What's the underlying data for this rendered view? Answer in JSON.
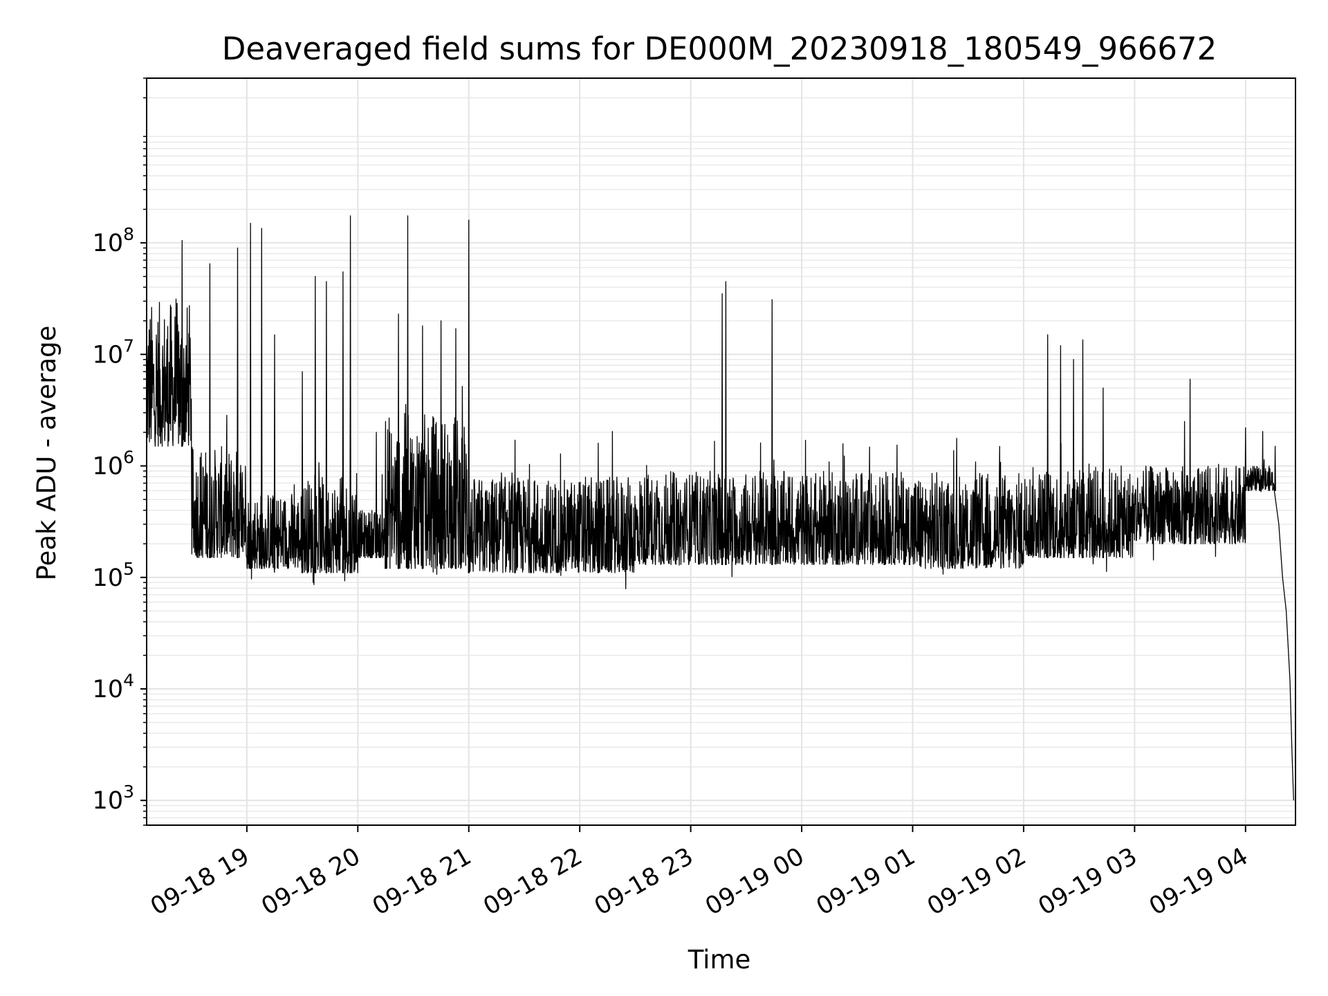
{
  "chart_data": {
    "type": "line",
    "title": "Deaveraged field sums for DE000M_20230918_180549_966672",
    "xlabel": "Time",
    "ylabel": "Peak ADU - average",
    "x_axis": {
      "kind": "datetime",
      "range": [
        "2023-09-18 18:05:49",
        "2023-09-19 04:27:00"
      ],
      "ticks": [
        {
          "time": "2023-09-18 19:00",
          "label": "09-18 19"
        },
        {
          "time": "2023-09-18 20:00",
          "label": "09-18 20"
        },
        {
          "time": "2023-09-18 21:00",
          "label": "09-18 21"
        },
        {
          "time": "2023-09-18 22:00",
          "label": "09-18 22"
        },
        {
          "time": "2023-09-18 23:00",
          "label": "09-18 23"
        },
        {
          "time": "2023-09-19 00:00",
          "label": "09-19 00"
        },
        {
          "time": "2023-09-19 01:00",
          "label": "09-19 01"
        },
        {
          "time": "2023-09-19 02:00",
          "label": "09-19 02"
        },
        {
          "time": "2023-09-19 03:00",
          "label": "09-19 03"
        },
        {
          "time": "2023-09-19 04:00",
          "label": "09-19 04"
        }
      ]
    },
    "y_axis": {
      "scale": "log",
      "range": [
        600,
        3000000000
      ],
      "ticks": [
        {
          "value": 1000,
          "base": "10",
          "exp": "3"
        },
        {
          "value": 10000,
          "base": "10",
          "exp": "4"
        },
        {
          "value": 100000,
          "base": "10",
          "exp": "5"
        },
        {
          "value": 1000000,
          "base": "10",
          "exp": "6"
        },
        {
          "value": 10000000,
          "base": "10",
          "exp": "7"
        },
        {
          "value": 100000000,
          "base": "10",
          "exp": "8"
        }
      ]
    },
    "grid": "major and minor",
    "legend": "none",
    "line_color": "#000000",
    "segments": [
      {
        "start": "2023-09-18 18:05:49",
        "end": "2023-09-18 18:30",
        "low": 1500000,
        "high": 30000000
      },
      {
        "start": "2023-09-18 18:30",
        "end": "2023-09-18 19:00",
        "low": 150000,
        "high": 1500000
      },
      {
        "start": "2023-09-18 19:00",
        "end": "2023-09-18 19:30",
        "low": 120000,
        "high": 600000
      },
      {
        "start": "2023-09-18 19:30",
        "end": "2023-09-18 20:00",
        "low": 110000,
        "high": 800000
      },
      {
        "start": "2023-09-18 20:00",
        "end": "2023-09-18 20:15",
        "low": 150000,
        "high": 400000
      },
      {
        "start": "2023-09-18 20:15",
        "end": "2023-09-18 21:00",
        "low": 120000,
        "high": 3000000
      },
      {
        "start": "2023-09-18 21:00",
        "end": "2023-09-18 22:30",
        "low": 110000,
        "high": 800000
      },
      {
        "start": "2023-09-18 22:30",
        "end": "2023-09-19 01:00",
        "low": 130000,
        "high": 900000
      },
      {
        "start": "2023-09-19 01:00",
        "end": "2023-09-19 02:00",
        "low": 120000,
        "high": 900000
      },
      {
        "start": "2023-09-19 02:00",
        "end": "2023-09-19 03:00",
        "low": 150000,
        "high": 1000000
      },
      {
        "start": "2023-09-19 03:00",
        "end": "2023-09-19 04:00",
        "low": 200000,
        "high": 1000000
      },
      {
        "start": "2023-09-19 04:00",
        "end": "2023-09-19 04:15",
        "low": 600000,
        "high": 1000000
      }
    ],
    "peaks": [
      {
        "time": "2023-09-18 18:25",
        "value": 105000000
      },
      {
        "time": "2023-09-18 18:40",
        "value": 65000000
      },
      {
        "time": "2023-09-18 18:55",
        "value": 90000000
      },
      {
        "time": "2023-09-18 19:02",
        "value": 150000000
      },
      {
        "time": "2023-09-18 19:08",
        "value": 135000000
      },
      {
        "time": "2023-09-18 19:15",
        "value": 15000000
      },
      {
        "time": "2023-09-18 19:30",
        "value": 7000000
      },
      {
        "time": "2023-09-18 19:37",
        "value": 50000000
      },
      {
        "time": "2023-09-18 19:43",
        "value": 45000000
      },
      {
        "time": "2023-09-18 19:52",
        "value": 55000000
      },
      {
        "time": "2023-09-18 19:56",
        "value": 175000000
      },
      {
        "time": "2023-09-18 20:10",
        "value": 2000000
      },
      {
        "time": "2023-09-18 20:15",
        "value": 2500000
      },
      {
        "time": "2023-09-18 20:22",
        "value": 23000000
      },
      {
        "time": "2023-09-18 20:27",
        "value": 175000000
      },
      {
        "time": "2023-09-18 20:35",
        "value": 18000000
      },
      {
        "time": "2023-09-18 20:45",
        "value": 20000000
      },
      {
        "time": "2023-09-18 20:53",
        "value": 17000000
      },
      {
        "time": "2023-09-18 21:00",
        "value": 160000000
      },
      {
        "time": "2023-09-18 21:25",
        "value": 1700000
      },
      {
        "time": "2023-09-18 22:10",
        "value": 1600000
      },
      {
        "time": "2023-09-18 23:17",
        "value": 35000000
      },
      {
        "time": "2023-09-18 23:19",
        "value": 45000000
      },
      {
        "time": "2023-09-18 23:44",
        "value": 31000000
      },
      {
        "time": "2023-09-19 02:13",
        "value": 15000000
      },
      {
        "time": "2023-09-19 02:20",
        "value": 12000000
      },
      {
        "time": "2023-09-19 02:27",
        "value": 9000000
      },
      {
        "time": "2023-09-19 02:32",
        "value": 13500000
      },
      {
        "time": "2023-09-19 02:43",
        "value": 5000000
      },
      {
        "time": "2023-09-19 03:30",
        "value": 6000000
      },
      {
        "time": "2023-09-19 03:27",
        "value": 2500000
      },
      {
        "time": "2023-09-19 04:00",
        "value": 2200000
      },
      {
        "time": "2023-09-19 04:16",
        "value": 1500000
      }
    ],
    "tail": [
      {
        "time": "2023-09-19 04:15",
        "value": 700000
      },
      {
        "time": "2023-09-19 04:18",
        "value": 300000
      },
      {
        "time": "2023-09-19 04:20",
        "value": 100000
      },
      {
        "time": "2023-09-19 04:22",
        "value": 50000
      },
      {
        "time": "2023-09-19 04:24",
        "value": 12000
      },
      {
        "time": "2023-09-19 04:25",
        "value": 3000
      },
      {
        "time": "2023-09-19 04:26",
        "value": 1000
      }
    ]
  }
}
